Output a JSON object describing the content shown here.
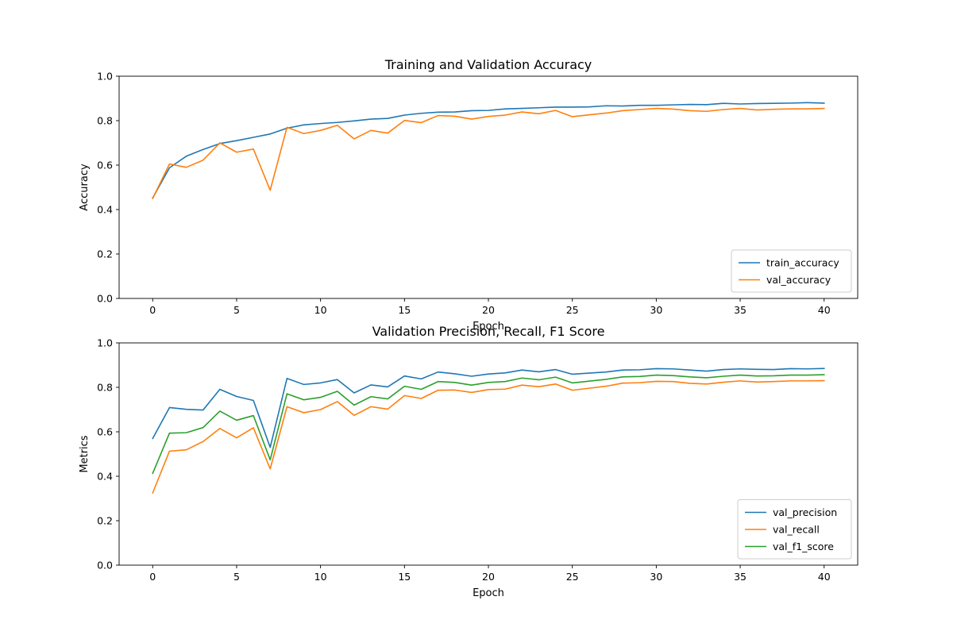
{
  "chart_data": [
    {
      "type": "line",
      "title": "Training and Validation Accuracy",
      "xlabel": "Epoch",
      "ylabel": "Accuracy",
      "xlim": [
        -2,
        42
      ],
      "ylim": [
        0,
        1
      ],
      "xticks": [
        0,
        5,
        10,
        15,
        20,
        25,
        30,
        35,
        40
      ],
      "yticks": [
        0.0,
        0.2,
        0.4,
        0.6,
        0.8,
        1.0
      ],
      "legend_position": "lower-right",
      "grid": false,
      "x": [
        0,
        1,
        2,
        3,
        4,
        5,
        6,
        7,
        8,
        9,
        10,
        11,
        12,
        13,
        14,
        15,
        16,
        17,
        18,
        19,
        20,
        21,
        22,
        23,
        24,
        25,
        26,
        27,
        28,
        29,
        30,
        31,
        32,
        33,
        34,
        35,
        36,
        37,
        38,
        39,
        40
      ],
      "series": [
        {
          "name": "train_accuracy",
          "color": "#1f77b4",
          "values": [
            0.452,
            0.588,
            0.64,
            0.67,
            0.697,
            0.71,
            0.725,
            0.74,
            0.766,
            0.781,
            0.787,
            0.792,
            0.799,
            0.807,
            0.81,
            0.825,
            0.833,
            0.838,
            0.839,
            0.845,
            0.846,
            0.853,
            0.855,
            0.858,
            0.861,
            0.861,
            0.862,
            0.867,
            0.866,
            0.869,
            0.869,
            0.871,
            0.873,
            0.872,
            0.878,
            0.875,
            0.877,
            0.878,
            0.879,
            0.881,
            0.879
          ]
        },
        {
          "name": "val_accuracy",
          "color": "#ff7f0e",
          "values": [
            0.45,
            0.605,
            0.59,
            0.622,
            0.7,
            0.658,
            0.672,
            0.487,
            0.77,
            0.742,
            0.756,
            0.779,
            0.718,
            0.756,
            0.744,
            0.801,
            0.791,
            0.823,
            0.82,
            0.807,
            0.819,
            0.825,
            0.839,
            0.831,
            0.846,
            0.818,
            0.826,
            0.834,
            0.845,
            0.85,
            0.855,
            0.852,
            0.845,
            0.842,
            0.85,
            0.855,
            0.848,
            0.851,
            0.853,
            0.853,
            0.855
          ]
        }
      ]
    },
    {
      "type": "line",
      "title": "Validation Precision, Recall, F1 Score",
      "xlabel": "Epoch",
      "ylabel": "Metrics",
      "xlim": [
        -2,
        42
      ],
      "ylim": [
        0,
        1
      ],
      "xticks": [
        0,
        5,
        10,
        15,
        20,
        25,
        30,
        35,
        40
      ],
      "yticks": [
        0.0,
        0.2,
        0.4,
        0.6,
        0.8,
        1.0
      ],
      "legend_position": "lower-right",
      "grid": false,
      "x": [
        0,
        1,
        2,
        3,
        4,
        5,
        6,
        7,
        8,
        9,
        10,
        11,
        12,
        13,
        14,
        15,
        16,
        17,
        18,
        19,
        20,
        21,
        22,
        23,
        24,
        25,
        26,
        27,
        28,
        29,
        30,
        31,
        32,
        33,
        34,
        35,
        36,
        37,
        38,
        39,
        40
      ],
      "series": [
        {
          "name": "val_precision",
          "color": "#1f77b4",
          "values": [
            0.57,
            0.709,
            0.701,
            0.698,
            0.791,
            0.759,
            0.741,
            0.53,
            0.84,
            0.813,
            0.82,
            0.835,
            0.775,
            0.811,
            0.802,
            0.851,
            0.838,
            0.869,
            0.861,
            0.85,
            0.86,
            0.865,
            0.878,
            0.87,
            0.88,
            0.859,
            0.864,
            0.869,
            0.878,
            0.879,
            0.884,
            0.883,
            0.878,
            0.873,
            0.88,
            0.883,
            0.881,
            0.88,
            0.884,
            0.883,
            0.885
          ]
        },
        {
          "name": "val_recall",
          "color": "#ff7f0e",
          "values": [
            0.325,
            0.513,
            0.519,
            0.556,
            0.615,
            0.573,
            0.618,
            0.433,
            0.713,
            0.686,
            0.7,
            0.736,
            0.674,
            0.713,
            0.702,
            0.763,
            0.75,
            0.787,
            0.788,
            0.777,
            0.79,
            0.792,
            0.81,
            0.803,
            0.815,
            0.787,
            0.796,
            0.805,
            0.819,
            0.821,
            0.827,
            0.826,
            0.818,
            0.815,
            0.823,
            0.829,
            0.824,
            0.826,
            0.829,
            0.829,
            0.83
          ]
        },
        {
          "name": "val_f1_score",
          "color": "#2ca02c",
          "values": [
            0.413,
            0.594,
            0.596,
            0.619,
            0.693,
            0.652,
            0.673,
            0.474,
            0.771,
            0.744,
            0.755,
            0.782,
            0.72,
            0.758,
            0.748,
            0.805,
            0.791,
            0.826,
            0.822,
            0.81,
            0.822,
            0.826,
            0.842,
            0.834,
            0.846,
            0.82,
            0.828,
            0.836,
            0.847,
            0.849,
            0.855,
            0.853,
            0.847,
            0.843,
            0.85,
            0.855,
            0.851,
            0.852,
            0.855,
            0.855,
            0.857
          ]
        }
      ]
    }
  ]
}
